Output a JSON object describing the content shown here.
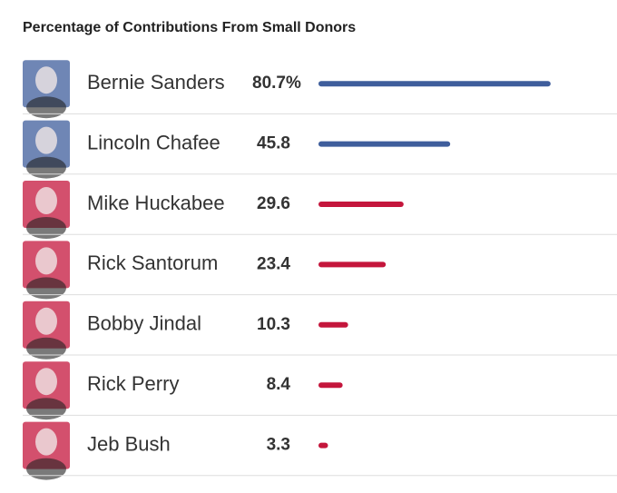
{
  "chart_data": {
    "type": "bar",
    "title": "Percentage of Contributions From Small Donors",
    "categories": [
      "Bernie Sanders",
      "Lincoln Chafee",
      "Mike Huckabee",
      "Rick Santorum",
      "Bobby Jindal",
      "Rick Perry",
      "Jeb Bush"
    ],
    "values": [
      80.7,
      45.8,
      29.6,
      23.4,
      10.3,
      8.4,
      3.3
    ],
    "value_labels": [
      "80.7%",
      "45.8",
      "29.6",
      "23.4",
      "10.3",
      "8.4",
      "3.3"
    ],
    "colors": [
      "#3f5e9c",
      "#3f5e9c",
      "#c4163c",
      "#c4163c",
      "#c4163c",
      "#c4163c",
      "#c4163c"
    ]
  }
}
